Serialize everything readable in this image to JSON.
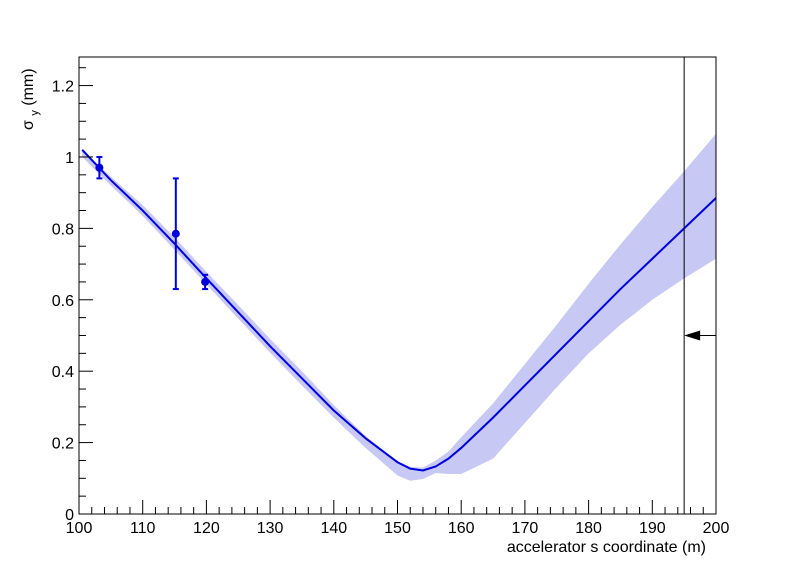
{
  "chart_data": {
    "type": "line",
    "title": "",
    "xlabel": "accelerator s coordinate (m)",
    "ylabel": "σ",
    "ylabel_sub": "y",
    "ylabel_unit": "(mm)",
    "xlim": [
      100,
      200
    ],
    "ylim": [
      0,
      1.28
    ],
    "x_ticks": [
      100,
      110,
      120,
      130,
      140,
      150,
      160,
      170,
      180,
      190,
      200
    ],
    "x_tick_labels": [
      "100",
      "110",
      "120",
      "130",
      "140",
      "150",
      "160",
      "170",
      "180",
      "190",
      "200"
    ],
    "y_ticks": [
      0,
      0.2,
      0.4,
      0.6,
      0.8,
      1,
      1.2
    ],
    "y_tick_labels": [
      "0",
      "0.2",
      "0.4",
      "0.6",
      "0.8",
      "1",
      "1.2"
    ],
    "grid": false,
    "legend": "none",
    "colors": {
      "fit_line": "#0000dd",
      "band": "#c8c8f4",
      "points": "#0000dd",
      "marker_line": "#000000"
    },
    "fit_curve": {
      "x": [
        100.5,
        105,
        110,
        115,
        120,
        125,
        130,
        135,
        140,
        145,
        150,
        152,
        154,
        156,
        158,
        160,
        165,
        170,
        175,
        180,
        185,
        190,
        195,
        200
      ],
      "y": [
        1.02,
        0.935,
        0.85,
        0.757,
        0.66,
        0.565,
        0.47,
        0.38,
        0.29,
        0.212,
        0.145,
        0.127,
        0.122,
        0.133,
        0.155,
        0.185,
        0.27,
        0.36,
        0.45,
        0.54,
        0.63,
        0.715,
        0.8,
        0.885
      ],
      "band_upper": [
        1.02,
        0.945,
        0.865,
        0.775,
        0.678,
        0.585,
        0.49,
        0.4,
        0.305,
        0.218,
        0.148,
        0.132,
        0.13,
        0.15,
        0.175,
        0.215,
        0.31,
        0.42,
        0.53,
        0.645,
        0.755,
        0.86,
        0.96,
        1.065
      ],
      "band_lower": [
        1.0,
        0.92,
        0.835,
        0.74,
        0.643,
        0.547,
        0.452,
        0.36,
        0.27,
        0.185,
        0.108,
        0.093,
        0.098,
        0.115,
        0.112,
        0.112,
        0.155,
        0.255,
        0.355,
        0.45,
        0.53,
        0.6,
        0.66,
        0.715
      ]
    },
    "measurements": [
      {
        "x": 103.2,
        "y": 0.97,
        "err": 0.03
      },
      {
        "x": 115.2,
        "y": 0.785,
        "err": 0.155
      },
      {
        "x": 119.8,
        "y": 0.65,
        "err": 0.02
      }
    ],
    "vertical_marker_x": 195,
    "arrow_marker": {
      "x_from": 200,
      "x_to": 195,
      "y": 0.5
    }
  }
}
